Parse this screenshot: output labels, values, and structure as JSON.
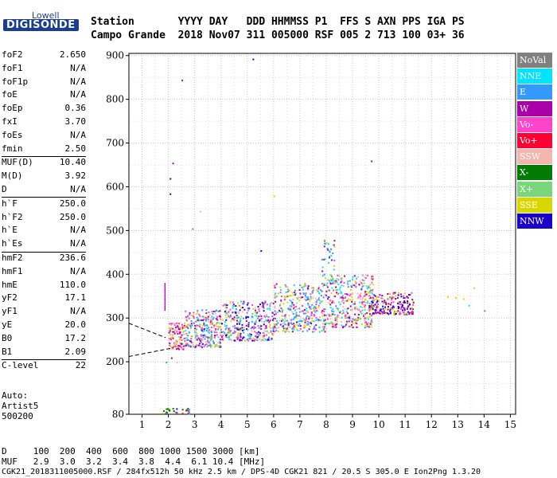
{
  "logo": {
    "top": "Lowell",
    "main": "DIGISONDE"
  },
  "header": {
    "row1": "Station       YYYY DAY   DDD HHMMSS P1  FFS S AXN PPS IGA PS",
    "row2": "Campo Grande  2018 Nov07 311 005000 RSF 005 2 713 100 03+ 36"
  },
  "params": [
    {
      "name": "foF2",
      "value": "2.650"
    },
    {
      "name": "foF1",
      "value": "N/A"
    },
    {
      "name": "foF1p",
      "value": "N/A"
    },
    {
      "name": "foE",
      "value": "N/A"
    },
    {
      "name": "foEp",
      "value": "0.36"
    },
    {
      "name": "fxI",
      "value": "3.70"
    },
    {
      "name": "foEs",
      "value": "N/A"
    },
    {
      "name": "fmin",
      "value": "2.50"
    },
    {
      "name": "MUF(D)",
      "value": "10.40"
    },
    {
      "name": "M(D)",
      "value": "3.92"
    },
    {
      "name": "D",
      "value": "N/A"
    },
    {
      "name": "h`F",
      "value": "250.0"
    },
    {
      "name": "h`F2",
      "value": "250.0"
    },
    {
      "name": "h`E",
      "value": "N/A"
    },
    {
      "name": "h`Es",
      "value": "N/A"
    },
    {
      "name": "hmF2",
      "value": "236.6"
    },
    {
      "name": "hmF1",
      "value": "N/A"
    },
    {
      "name": "hmE",
      "value": "110.0"
    },
    {
      "name": "yF2",
      "value": "17.1"
    },
    {
      "name": "yF1",
      "value": "N/A"
    },
    {
      "name": "yE",
      "value": "20.0"
    },
    {
      "name": "B0",
      "value": "17.2"
    },
    {
      "name": "B1",
      "value": "2.09"
    },
    {
      "name": "C-level",
      "value": "22"
    }
  ],
  "autoscaling": {
    "line1": "Auto:",
    "line2": "Artist5",
    "line3": "500200"
  },
  "footer": {
    "d_row": "D     100  200  400  600  800 1000 1500 3000 [km]",
    "muf_row": "MUF   2.9  3.0  3.2  3.4  3.8  4.4  6.1 10.4 [MHz]",
    "file_row": "CGK21_2018311005000.RSF / 284fx512h 50 kHz 2.5 km / DPS-4D CGK21 821 / 20.5 S 305.0 E Ion2Png 1.3.20"
  },
  "legend": [
    {
      "label": "NoVal",
      "color": "#808080"
    },
    {
      "label": "NNE",
      "color": "#00e5ff"
    },
    {
      "label": "E",
      "color": "#3399ff"
    },
    {
      "label": "W",
      "color": "#aa00aa"
    },
    {
      "label": "Vo-",
      "color": "#ff44cc"
    },
    {
      "label": "Vo+",
      "color": "#ff0033"
    },
    {
      "label": "SSW",
      "color": "#f7b5b0"
    },
    {
      "label": "X-",
      "color": "#007a00"
    },
    {
      "label": "X+",
      "color": "#7ad67a"
    },
    {
      "label": "SSE",
      "color": "#d8d800"
    },
    {
      "label": "NNW",
      "color": "#1a00cc"
    }
  ],
  "chart_data": {
    "type": "scatter",
    "xlim": [
      0.5,
      15.2
    ],
    "ylim": [
      80,
      905
    ],
    "xticks": [
      1,
      2,
      3,
      4,
      5,
      6,
      7,
      8,
      9,
      10,
      11,
      12,
      13,
      14,
      15
    ],
    "yticks": [
      80,
      200,
      300,
      400,
      500,
      600,
      700,
      800,
      900
    ],
    "grid": true,
    "clusters": [
      {
        "x": [
          2.0,
          2.6
        ],
        "y": [
          230,
          290
        ],
        "colors": [
          "#f7b5b0",
          "#d8d800",
          "#ff44cc",
          "#aa00aa"
        ],
        "n": 120
      },
      {
        "x": [
          2.6,
          4.0
        ],
        "y": [
          235,
          320
        ],
        "colors": [
          "#f7b5b0",
          "#d8d800",
          "#00e5ff",
          "#ff44cc",
          "#aa00aa",
          "#3399ff"
        ],
        "n": 300
      },
      {
        "x": [
          4.0,
          6.0
        ],
        "y": [
          250,
          340
        ],
        "colors": [
          "#f7b5b0",
          "#d8d800",
          "#00e5ff",
          "#aa00aa",
          "#ff44cc",
          "#3399ff",
          "#1a00cc"
        ],
        "n": 340
      },
      {
        "x": [
          6.0,
          8.0
        ],
        "y": [
          270,
          380
        ],
        "colors": [
          "#d8d800",
          "#f7b5b0",
          "#00e5ff",
          "#aa00aa",
          "#ff44cc",
          "#3399ff"
        ],
        "n": 380
      },
      {
        "x": [
          8.0,
          9.8
        ],
        "y": [
          280,
          400
        ],
        "colors": [
          "#d8d800",
          "#f7b5b0",
          "#aa00aa",
          "#ff44cc",
          "#00e5ff"
        ],
        "n": 380
      },
      {
        "x": [
          9.6,
          11.3
        ],
        "y": [
          310,
          360
        ],
        "colors": [
          "#1a00cc",
          "#aa00aa",
          "#ff44cc",
          "#d8d800"
        ],
        "n": 220
      },
      {
        "x": [
          7.8,
          8.3
        ],
        "y": [
          380,
          480
        ],
        "colors": [
          "#d8d800",
          "#00e5ff",
          "#aa00aa",
          "#3399ff"
        ],
        "n": 40
      },
      {
        "x": [
          1.7,
          2.9
        ],
        "y": [
          83,
          95
        ],
        "colors": [
          "#ff0033",
          "#007a00",
          "#3399ff",
          "#1a00cc",
          "#d8d800"
        ],
        "n": 30
      }
    ],
    "isolated_points": [
      {
        "x": 2.5,
        "y": 845,
        "color": "#aa00aa"
      },
      {
        "x": 5.2,
        "y": 893,
        "color": "#1a00cc"
      },
      {
        "x": 2.15,
        "y": 655,
        "color": "#aa00aa"
      },
      {
        "x": 2.05,
        "y": 620,
        "color": "#1a00cc"
      },
      {
        "x": 2.05,
        "y": 585,
        "color": "#1a00cc"
      },
      {
        "x": 6.0,
        "y": 580,
        "color": "#d8d800"
      },
      {
        "x": 9.7,
        "y": 660,
        "color": "#aa00aa"
      },
      {
        "x": 5.5,
        "y": 455,
        "color": "#1a00cc"
      },
      {
        "x": 2.9,
        "y": 505,
        "color": "#ff44cc"
      },
      {
        "x": 3.2,
        "y": 545,
        "color": "#f7b5b0"
      },
      {
        "x": 12.6,
        "y": 350,
        "color": "#d8d800"
      },
      {
        "x": 12.9,
        "y": 348,
        "color": "#d8d800"
      },
      {
        "x": 13.2,
        "y": 345,
        "color": "#d8d800"
      },
      {
        "x": 13.6,
        "y": 370,
        "color": "#d8d800"
      },
      {
        "x": 13.4,
        "y": 330,
        "color": "#00e5ff"
      },
      {
        "x": 14.0,
        "y": 318,
        "color": "#3399ff"
      },
      {
        "x": 1.9,
        "y": 200,
        "color": "#3399ff"
      },
      {
        "x": 2.1,
        "y": 210,
        "color": "#aa00aa"
      },
      {
        "x": 2.3,
        "y": 200,
        "color": "#f7b5b0"
      }
    ],
    "vertical_streak": {
      "x": 1.85,
      "y": [
        320,
        380
      ],
      "color": "#aa00aa"
    },
    "dashed_lines": [
      {
        "points": [
          [
            0.5,
            212
          ],
          [
            2.2,
            232
          ]
        ]
      },
      {
        "points": [
          [
            0.5,
            288
          ],
          [
            1.9,
            255
          ]
        ]
      }
    ]
  }
}
